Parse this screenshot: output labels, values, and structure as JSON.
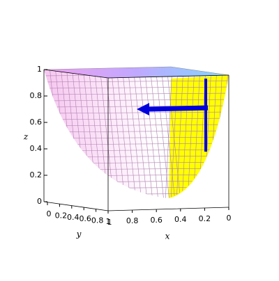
{
  "chart_data": {
    "type": "surface3d",
    "x_label": "x",
    "y_label": "y",
    "z_label": "z",
    "xlim": [
      0,
      1
    ],
    "ylim": [
      0,
      1
    ],
    "zlim": [
      0,
      1
    ],
    "xticks": [
      1,
      0.8,
      0.6,
      0.4,
      0.2,
      0
    ],
    "yticks": [
      0,
      0.2,
      0.4,
      0.6,
      0.8,
      1
    ],
    "zticks": [
      0,
      0.2,
      0.4,
      0.6,
      0.8,
      1
    ]
  }
}
